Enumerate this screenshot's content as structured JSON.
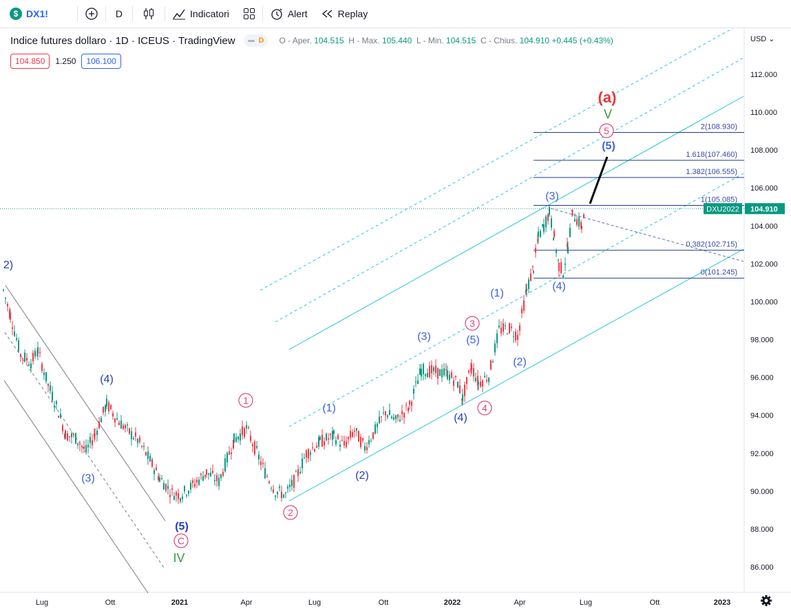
{
  "toolbar": {
    "symbol_badge": "$",
    "symbol": "DX1!",
    "add_icon": "plus-circle-icon",
    "interval": "D",
    "bar_style_icon": "candles-icon",
    "indicators_label": "Indicatori",
    "templates_icon": "grid-icon",
    "alert_label": "Alert",
    "replay_label": "Replay"
  },
  "legend": {
    "title": "Indice futures dollaro · 1D · ICEUS · TradingView",
    "badge": "D",
    "ohlc": {
      "open_label": "O - Aper.",
      "open": "104.515",
      "high_label": "H - Max.",
      "high": "105.440",
      "low_label": "L - Min.",
      "low": "104.515",
      "close_label": "C - Chius.",
      "close": "104.910",
      "change": "+0.445 (+0.43%)"
    }
  },
  "quick_trade": {
    "sell": "104.850",
    "spread": "1.250",
    "buy": "106.100"
  },
  "price_axis": {
    "currency": "USD",
    "ticks": [
      "112.000",
      "110.000",
      "108.000",
      "106.000",
      "104.000",
      "102.000",
      "100.000",
      "98.000",
      "96.000",
      "94.000",
      "92.000",
      "90.000",
      "88.000",
      "86.000"
    ],
    "last_label": "DXU2022",
    "last_price": "104.910"
  },
  "time_axis": {
    "ticks": [
      "Lug",
      "Ott",
      "2021",
      "Apr",
      "Lug",
      "Ott",
      "2022",
      "Apr",
      "Lug",
      "Ott",
      "2023"
    ]
  },
  "fib_levels": [
    "2(108.930)",
    "1.618(107.460)",
    "1.382(106.555)",
    "1(105.085)",
    "0.382(102.715)",
    "0(101.245)"
  ],
  "wave_labels": {
    "blue": [
      "2)",
      "(4)",
      "(3)",
      "(5)",
      "(1)",
      "(2)",
      "(3)",
      "(5)",
      "(4)",
      "(1)",
      "(2)",
      "(3)",
      "(4)",
      "(5)"
    ],
    "pink": [
      "1",
      "2",
      "3",
      "4",
      "5",
      "C"
    ],
    "green": [
      "IV",
      "V"
    ],
    "red": [
      "(a)"
    ]
  },
  "colors": {
    "up": "#089981",
    "down": "#f23645",
    "channel": "#26c6da",
    "fib": "#1e3a8a",
    "wave_blue": "#1f3fbf",
    "wave_pink": "#e0457b",
    "wave_green": "#3a9a3a",
    "wave_red": "#e53935"
  },
  "settings_icon": "gear-icon"
}
